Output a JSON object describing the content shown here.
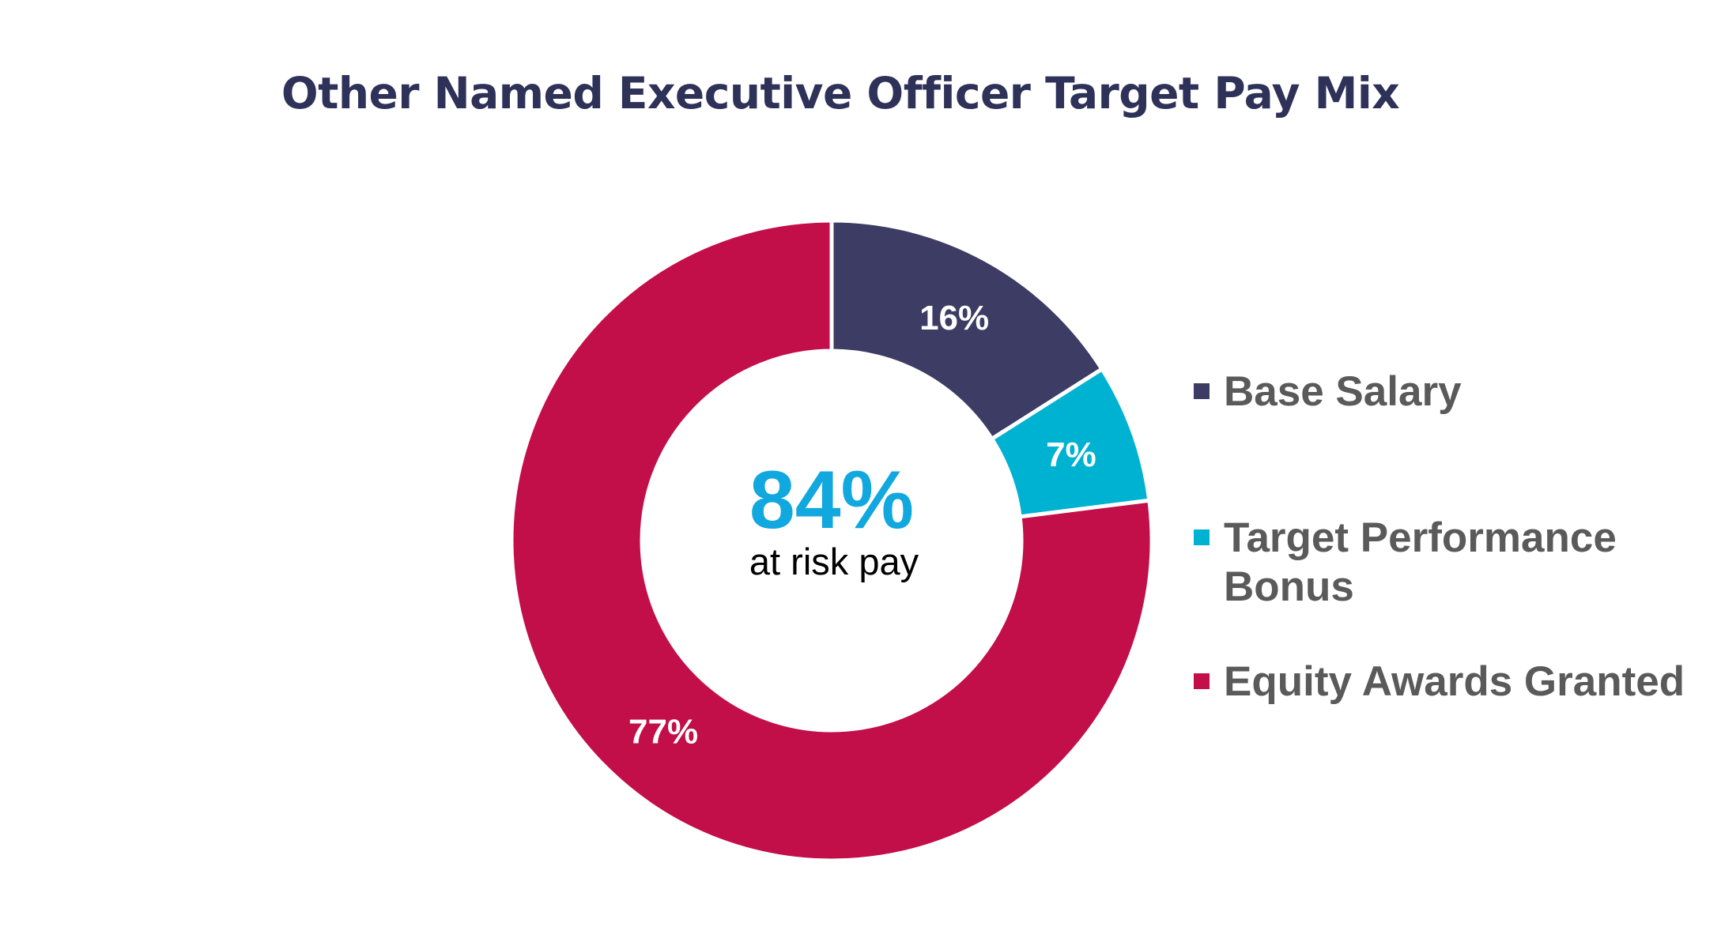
{
  "chart_data": {
    "type": "pie",
    "variant": "donut",
    "title": "Other Named Executive Officer Target Pay Mix",
    "series": [
      {
        "name": "Base Salary",
        "value": 16,
        "label": "16%",
        "color": "#3c3c64"
      },
      {
        "name": "Target Performance Bonus",
        "value": 7,
        "label": "7%",
        "color": "#00b2d2"
      },
      {
        "name": "Equity Awards Granted",
        "value": 77,
        "label": "77%",
        "color": "#c20e49"
      }
    ],
    "center": {
      "value": "84%",
      "caption": "at risk pay"
    },
    "legend_position": "right"
  }
}
